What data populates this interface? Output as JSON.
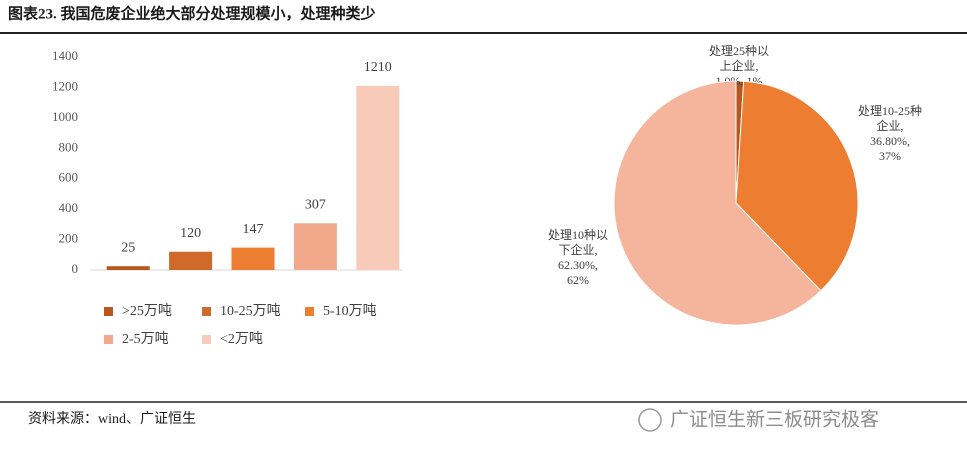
{
  "header": {
    "title": "图表23. 我国危废企业绝大部分处理规模小，处理种类少"
  },
  "chart_data": [
    {
      "type": "bar",
      "categories": [
        ">25万吨",
        "10-25万吨",
        "5-10万吨",
        "2-5万吨",
        "<2万吨"
      ],
      "values": [
        25,
        120,
        147,
        307,
        1210
      ],
      "colors": [
        "#b8561f",
        "#cf6a2a",
        "#ed7d31",
        "#f2a98b",
        "#f8cbb9"
      ],
      "ylim": [
        0,
        1400
      ],
      "yticks": [
        0,
        200,
        400,
        600,
        800,
        1000,
        1200,
        1400
      ],
      "grid": false,
      "legend": "bottom"
    },
    {
      "type": "pie",
      "categories": [
        "处理25种以上企业,",
        "处理10-25种企业,",
        "处理10种以下企业,"
      ],
      "values": [
        1.0,
        36.8,
        62.3
      ],
      "value_labels": [
        "1.0%, 1%",
        "36.80%, 37%",
        "62.30%, 62%"
      ],
      "colors": [
        "#b8561f",
        "#ed7d31",
        "#f4b59c"
      ]
    }
  ],
  "footer": {
    "source": "资料来源：wind、广证恒生",
    "watermark": "广证恒生新三板研究极客"
  }
}
